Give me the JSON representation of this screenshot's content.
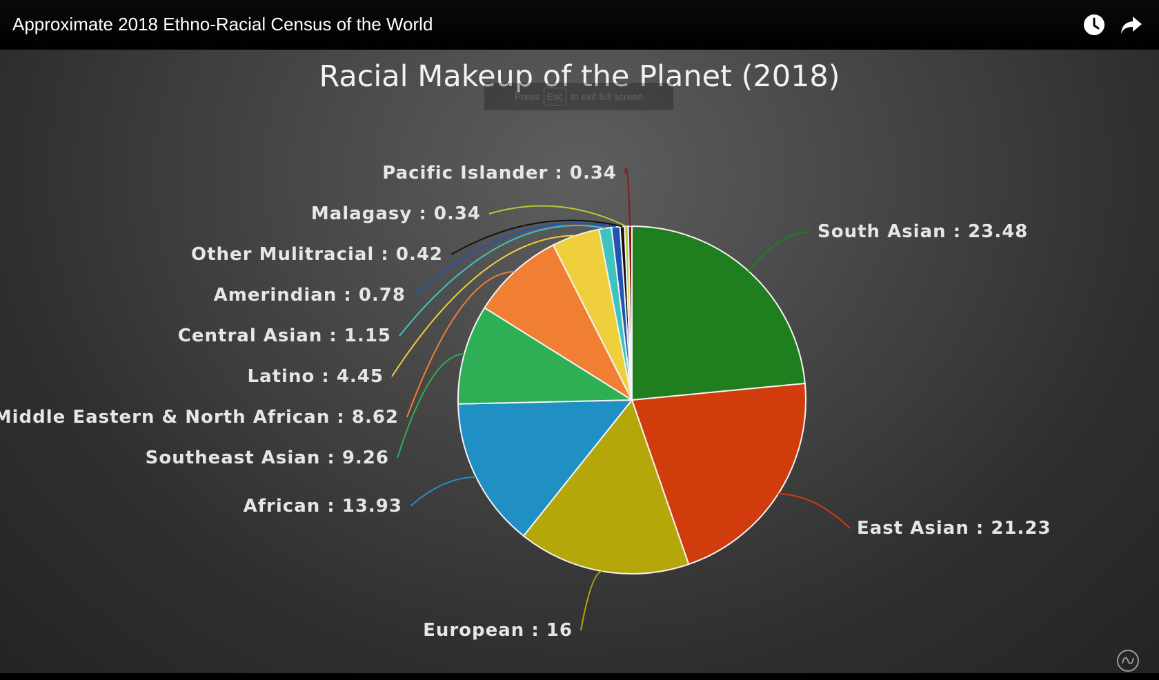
{
  "header": {
    "video_title": "Approximate 2018 Ethno-Racial Census of the World",
    "esc_hint_pre": "Press",
    "esc_hint_key": "Esc",
    "esc_hint_post": "to exit full screen"
  },
  "icons": {
    "watch_later": "clock-icon",
    "share": "share-arrow-icon",
    "watermark": "channel-logo-icon"
  },
  "chart_data": {
    "type": "pie",
    "title": "Racial Makeup of the Planet (2018)",
    "background": "#3a3a3a",
    "slices": [
      {
        "label": "South Asian",
        "value": 23.48,
        "display": "South Asian : 23.48",
        "color": "#1f7f1f"
      },
      {
        "label": "East Asian",
        "value": 21.23,
        "display": "East Asian : 21.23",
        "color": "#d13c0c"
      },
      {
        "label": "European",
        "value": 16,
        "display": "European : 16",
        "color": "#b5a60a"
      },
      {
        "label": "African",
        "value": 13.93,
        "display": "African : 13.93",
        "color": "#1f8fc4"
      },
      {
        "label": "Southeast Asian",
        "value": 9.26,
        "display": "Southeast Asian : 9.26",
        "color": "#2eaf55"
      },
      {
        "label": "Middle Eastern & North African",
        "value": 8.62,
        "display": "Middle Eastern & North African : 8.62",
        "color": "#f17f33"
      },
      {
        "label": "Latino",
        "value": 4.45,
        "display": "Latino : 4.45",
        "color": "#f0cf3c"
      },
      {
        "label": "Central Asian",
        "value": 1.15,
        "display": "Central Asian : 1.15",
        "color": "#3dc4c0"
      },
      {
        "label": "Amerindian",
        "value": 0.78,
        "display": "Amerindian : 0.78",
        "color": "#2254b5"
      },
      {
        "label": "Other Mulitracial",
        "value": 0.42,
        "display": "Other Mulitracial : 0.42",
        "color": "#111111"
      },
      {
        "label": "Malagasy",
        "value": 0.34,
        "display": "Malagasy : 0.34",
        "color": "#b8c934"
      },
      {
        "label": "Pacific Islander",
        "value": 0.34,
        "display": "Pacific Islander : 0.34",
        "color": "#8a1a1a"
      }
    ]
  }
}
